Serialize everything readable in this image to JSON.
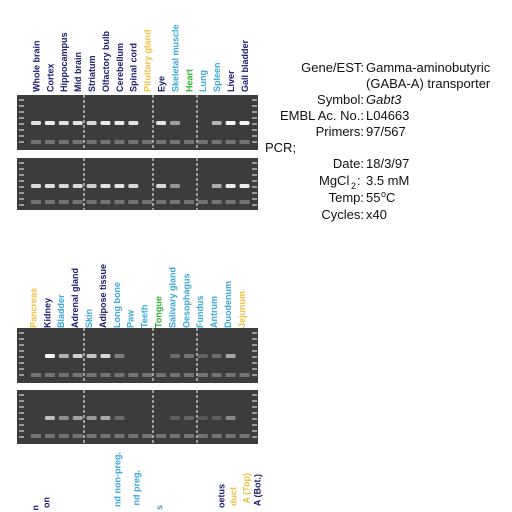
{
  "panels": [
    {
      "labels": [
        {
          "text": "Whole brain",
          "color": "#1a1a6e"
        },
        {
          "text": "Cortex",
          "color": "#1a1a6e"
        },
        {
          "text": "Hippocampus",
          "color": "#1a1a6e"
        },
        {
          "text": "Mid brain",
          "color": "#1a1a6e"
        },
        {
          "text": "Striatum",
          "color": "#1a1a6e"
        },
        {
          "text": "Olfactory bulb",
          "color": "#1a1a6e"
        },
        {
          "text": "Cerebellum",
          "color": "#1a1a6e"
        },
        {
          "text": "Spinal cord",
          "color": "#1a1a6e"
        },
        {
          "text": "Pituitary gland",
          "color": "#f0c040"
        },
        {
          "text": "Eye",
          "color": "#1a1a6e"
        },
        {
          "text": "Skeletal muscle",
          "color": "#3aa6d8"
        },
        {
          "text": "Heart",
          "color": "#30b030"
        },
        {
          "text": "Lung",
          "color": "#3aa6d8"
        },
        {
          "text": "Spleen",
          "color": "#3aa6d8"
        },
        {
          "text": "Liver",
          "color": "#1a1a6e"
        },
        {
          "text": "Gall bladder",
          "color": "#1a1a6e"
        }
      ]
    },
    {
      "labels": [
        {
          "text": "Pancreas",
          "color": "#f0c040"
        },
        {
          "text": "Kidney",
          "color": "#1a1a6e"
        },
        {
          "text": "Bladder",
          "color": "#3aa6d8"
        },
        {
          "text": "Adrenal gland",
          "color": "#1a1a6e"
        },
        {
          "text": "Skin",
          "color": "#3aa6d8"
        },
        {
          "text": "Adipose tissue",
          "color": "#1a1a6e"
        },
        {
          "text": "Long bone",
          "color": "#3aa6d8"
        },
        {
          "text": "Paw",
          "color": "#3aa6d8"
        },
        {
          "text": "Teeth",
          "color": "#3aa6d8"
        },
        {
          "text": "Tongue",
          "color": "#30b030"
        },
        {
          "text": "Salivary gland",
          "color": "#3aa6d8"
        },
        {
          "text": "Oesophagus",
          "color": "#3aa6d8"
        },
        {
          "text": "Fundus",
          "color": "#3aa6d8"
        },
        {
          "text": "Antrum",
          "color": "#3aa6d8"
        },
        {
          "text": "Duodenum",
          "color": "#3aa6d8"
        },
        {
          "text": "Jejunum",
          "color": "#f0c040"
        }
      ]
    },
    {
      "labels": [
        {
          "text": "n",
          "color": "#1a1a6e"
        },
        {
          "text": "on",
          "color": "#1a1a6e"
        },
        {
          "text": "nd non-preg.",
          "color": "#3aa6d8"
        },
        {
          "text": "nd preg.",
          "color": "#3aa6d8"
        },
        {
          "text": "s",
          "color": "#3aa6d8"
        },
        {
          "text": "oetus",
          "color": "#1a1a6e"
        },
        {
          "text": "duct",
          "color": "#f0c040"
        },
        {
          "text": "A (Top)",
          "color": "#f0c040"
        },
        {
          "text": "A (Bot.)",
          "color": "#1a1a6e"
        }
      ]
    }
  ],
  "info": {
    "gene_label": "Gene/EST:",
    "gene_lines": [
      "Gamma-aminobutyric",
      "(GABA-A) transporter"
    ],
    "symbol_label": "Symbol:",
    "symbol": "Gabt3",
    "embl_label": "EMBL Ac. No.:",
    "embl": "L04663",
    "primers_label": "Primers:",
    "primers": "97/567",
    "pcr": "PCR;",
    "date_label": "Date:",
    "date": "18/3/97",
    "mgcl_label": "MgCl",
    "mgcl_sub": "2",
    "mgcl_colon": ":",
    "mgcl": "3.5 mM",
    "temp_label": "Temp:",
    "temp_value": "55",
    "temp_sup": "o",
    "temp_unit": "C",
    "cycles_label": "Cycles:",
    "cycles": "x40"
  }
}
